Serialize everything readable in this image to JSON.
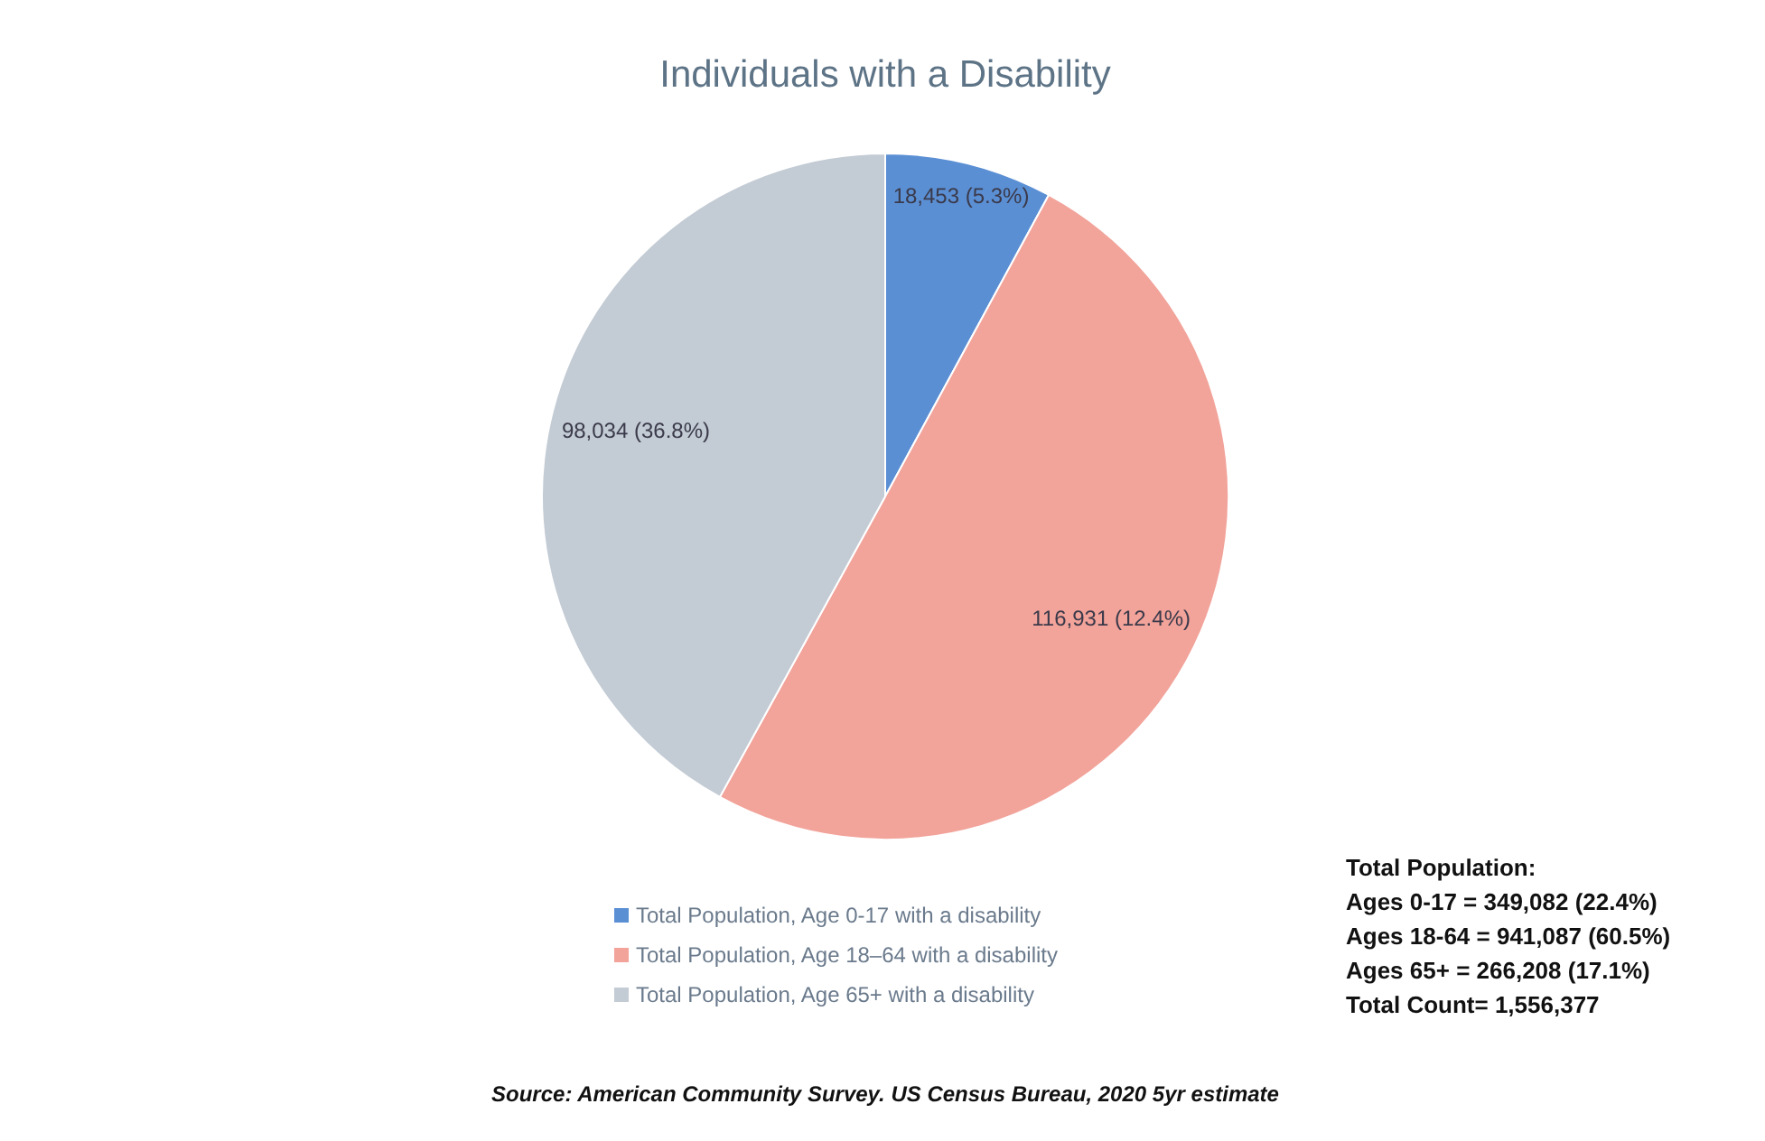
{
  "chart_data": {
    "type": "pie",
    "title": "Individuals with a Disability",
    "categories": [
      "Total Population, Age 0-17 with a disability",
      "Total Population, Age 18–64 with a disability",
      "Total Population, Age 65+ with a disability"
    ],
    "values": [
      18453,
      116931,
      98034
    ],
    "colors": [
      "#5b8fd4",
      "#f2a39a",
      "#c3cbd4"
    ],
    "value_labels": [
      "18,453  (5.3%)",
      "116,931 (12.4%)",
      "98,034 (36.8%)"
    ],
    "legend": "bottom",
    "annotations": [
      "Total Population:",
      "Ages 0-17 = 349,082 (22.4%)",
      "Ages 18-64 = 941,087 (60.5%)",
      "Ages 65+ = 266,208 (17.1%)",
      "Total Count= 1,556,377",
      "Source: American Community Survey. US Census Bureau, 2020 5yr estimate"
    ]
  }
}
